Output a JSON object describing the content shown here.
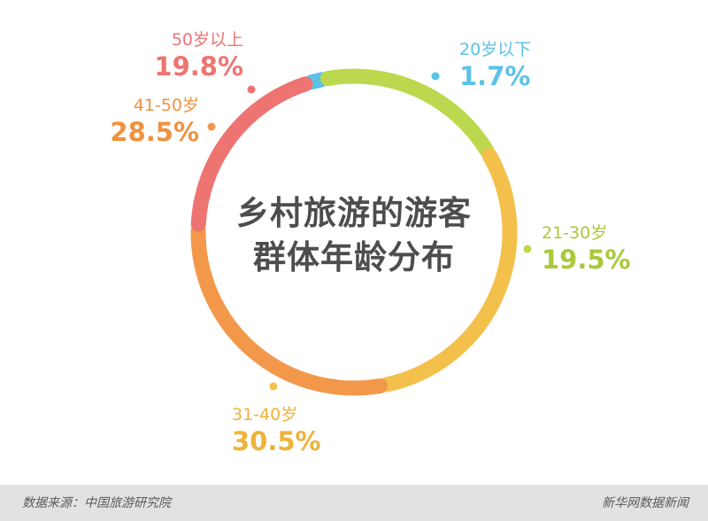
{
  "chart_data": {
    "type": "pie",
    "style": "donut",
    "title": "乡村旅游的游客群体年龄分布",
    "title_lines": [
      "乡村旅游的游客",
      "群体年龄分布"
    ],
    "categories": [
      "20岁以下",
      "21-30岁",
      "31-40岁",
      "41-50岁",
      "50岁以上"
    ],
    "values": [
      1.7,
      19.5,
      30.5,
      28.5,
      19.8
    ],
    "value_labels": [
      "1.7%",
      "19.5%",
      "30.5%",
      "28.5%",
      "19.8%"
    ],
    "colors": [
      "#5bc2e7",
      "#bcd84e",
      "#f3c04b",
      "#f3984a",
      "#ee7472"
    ],
    "legend": "none"
  },
  "footer": {
    "source": "数据来源：中国旅游研究院",
    "brand": "新华网数据新闻"
  }
}
